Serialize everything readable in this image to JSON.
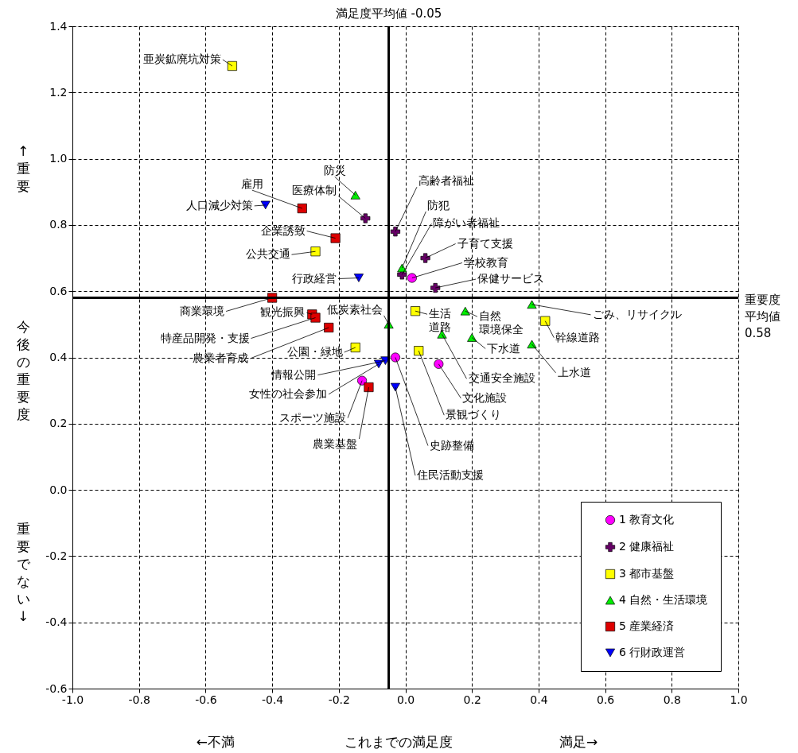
{
  "chart_data": {
    "type": "scatter",
    "xlabel": "これまでの満足度",
    "ylabel": "今後の重要度",
    "xlim": [
      -1.0,
      1.0
    ],
    "ylim": [
      -0.6,
      1.4
    ],
    "xticks": [
      {
        "value": -1.0,
        "label": "-1.0"
      },
      {
        "value": -0.8,
        "label": "-0.8"
      },
      {
        "value": -0.6,
        "label": "-0.6"
      },
      {
        "value": -0.4,
        "label": "-0.4"
      },
      {
        "value": -0.2,
        "label": "-0.2"
      },
      {
        "value": 0.0,
        "label": "0.0"
      },
      {
        "value": 0.2,
        "label": "0.2"
      },
      {
        "value": 0.4,
        "label": "0.4"
      },
      {
        "value": 0.6,
        "label": "0.6"
      },
      {
        "value": 0.8,
        "label": "0.8"
      },
      {
        "value": 1.0,
        "label": "1.0"
      }
    ],
    "yticks": [
      {
        "value": -0.6,
        "label": "-0.6"
      },
      {
        "value": -0.4,
        "label": "-0.4"
      },
      {
        "value": -0.2,
        "label": "-0.2"
      },
      {
        "value": 0.0,
        "label": "0.0"
      },
      {
        "value": 0.2,
        "label": "0.2"
      },
      {
        "value": 0.4,
        "label": "0.4"
      },
      {
        "value": 0.6,
        "label": "0.6"
      },
      {
        "value": 0.8,
        "label": "0.8"
      },
      {
        "value": 1.0,
        "label": "1.0"
      },
      {
        "value": 1.2,
        "label": "1.2"
      },
      {
        "value": 1.4,
        "label": "1.4"
      }
    ],
    "grid": true,
    "legend": "bottom right",
    "series": [
      {
        "name": "1 教育文化",
        "color": "#ff00ff",
        "marker": "circle",
        "x": [
          0.02,
          -0.03,
          0.1,
          -0.13
        ],
        "values": [
          0.64,
          0.4,
          0.38,
          0.33
        ]
      },
      {
        "name": "2 健康福祉",
        "color": "#660066",
        "marker": "cross",
        "x": [
          -0.12,
          -0.03,
          -0.01,
          0.06,
          0.09
        ],
        "values": [
          0.82,
          0.78,
          0.65,
          0.7,
          0.61
        ]
      },
      {
        "name": "3 都市基盤",
        "color": "#ffff00",
        "marker": "square",
        "x": [
          -0.52,
          -0.27,
          -0.15,
          0.03,
          0.04,
          0.42
        ],
        "values": [
          1.28,
          0.72,
          0.43,
          0.54,
          0.42,
          0.51
        ]
      },
      {
        "name": "4 自然・生活環境",
        "color": "#00ee00",
        "marker": "triangle",
        "x": [
          -0.15,
          -0.01,
          -0.05,
          0.18,
          0.11,
          0.2,
          0.38,
          0.38
        ],
        "values": [
          0.89,
          0.67,
          0.5,
          0.54,
          0.47,
          0.46,
          0.56,
          0.44
        ]
      },
      {
        "name": "5 産業経済",
        "color": "#dd0000",
        "marker": "square",
        "x": [
          -0.31,
          -0.21,
          -0.4,
          -0.28,
          -0.27,
          -0.23,
          -0.11
        ],
        "values": [
          0.85,
          0.76,
          0.58,
          0.53,
          0.52,
          0.49,
          0.31
        ]
      },
      {
        "name": "6 行財政運営",
        "color": "#0000ff",
        "marker": "triangle-down",
        "x": [
          -0.42,
          -0.14,
          -0.06,
          -0.08,
          -0.03
        ],
        "values": [
          0.86,
          0.64,
          0.39,
          0.38,
          0.31
        ]
      }
    ],
    "ref_lines": [
      {
        "axis": "x",
        "value": -0.05,
        "label": "満足度平均値 -0.05",
        "color": "#000000"
      },
      {
        "axis": "y",
        "value": 0.58,
        "label": "重要度平均値0.58",
        "color": "#000000"
      }
    ],
    "annotations": [
      "←不満",
      "満足→",
      "↑重要",
      "重要でない↓",
      {
        "text": "学校教育",
        "x": 0.02,
        "y": 0.64
      },
      {
        "text": "史跡整備",
        "x": -0.03,
        "y": 0.4
      },
      {
        "text": "文化施設",
        "x": 0.1,
        "y": 0.38
      },
      {
        "text": "スポーツ施設",
        "x": -0.13,
        "y": 0.33
      },
      {
        "text": "医療体制",
        "x": -0.12,
        "y": 0.82
      },
      {
        "text": "高齢者福祉",
        "x": -0.03,
        "y": 0.78
      },
      {
        "text": "障がい者福祉",
        "x": -0.01,
        "y": 0.65
      },
      {
        "text": "子育て支援",
        "x": 0.06,
        "y": 0.7
      },
      {
        "text": "保健サービス",
        "x": 0.09,
        "y": 0.61
      },
      {
        "text": "亜炭鉱廃坑対策",
        "x": -0.52,
        "y": 1.28
      },
      {
        "text": "公共交通",
        "x": -0.27,
        "y": 0.72
      },
      {
        "text": "公園・緑地",
        "x": -0.15,
        "y": 0.43
      },
      {
        "text": "生活道路",
        "x": 0.03,
        "y": 0.54
      },
      {
        "text": "景観づくり",
        "x": 0.04,
        "y": 0.42
      },
      {
        "text": "幹線道路",
        "x": 0.42,
        "y": 0.51
      },
      {
        "text": "防災",
        "x": -0.15,
        "y": 0.89
      },
      {
        "text": "防犯",
        "x": -0.01,
        "y": 0.67
      },
      {
        "text": "低炭素社会",
        "x": -0.05,
        "y": 0.5
      },
      {
        "text": "自然環境保全",
        "x": 0.18,
        "y": 0.54
      },
      {
        "text": "交通安全施設",
        "x": 0.11,
        "y": 0.47
      },
      {
        "text": "下水道",
        "x": 0.2,
        "y": 0.46
      },
      {
        "text": "ごみ、リサイクル",
        "x": 0.38,
        "y": 0.56
      },
      {
        "text": "上水道",
        "x": 0.38,
        "y": 0.44
      },
      {
        "text": "雇用",
        "x": -0.31,
        "y": 0.85
      },
      {
        "text": "企業誘致",
        "x": -0.21,
        "y": 0.76
      },
      {
        "text": "商業環境",
        "x": -0.4,
        "y": 0.58
      },
      {
        "text": "観光振興",
        "x": -0.28,
        "y": 0.53
      },
      {
        "text": "特産品開発・支援",
        "x": -0.27,
        "y": 0.52
      },
      {
        "text": "農業者育成",
        "x": -0.23,
        "y": 0.49
      },
      {
        "text": "農業基盤",
        "x": -0.11,
        "y": 0.31
      },
      {
        "text": "人口減少対策",
        "x": -0.42,
        "y": 0.86
      },
      {
        "text": "行政経営",
        "x": -0.14,
        "y": 0.64
      },
      {
        "text": "情報公開",
        "x": -0.06,
        "y": 0.39
      },
      {
        "text": "女性の社会参加",
        "x": -0.08,
        "y": 0.38
      },
      {
        "text": "住民活動支援",
        "x": -0.03,
        "y": 0.31
      }
    ]
  }
}
